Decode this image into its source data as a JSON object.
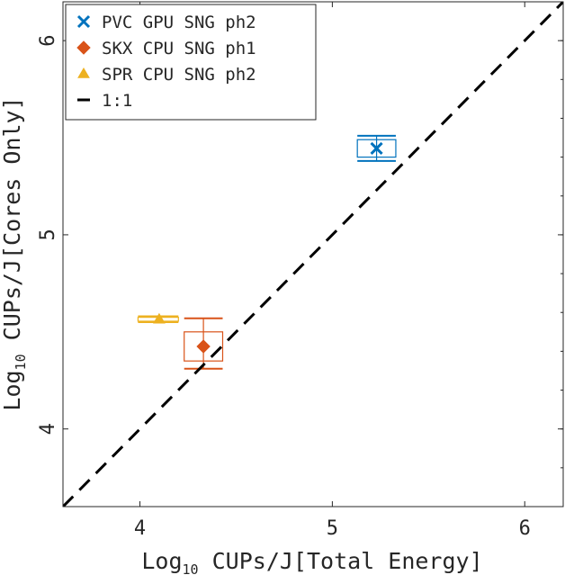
{
  "chart_data": {
    "type": "scatter",
    "title": "",
    "xlabel": {
      "prefix": "Log",
      "sub": "10",
      "suffix": " CUPs/J[Total Energy]"
    },
    "ylabel": {
      "prefix": "Log",
      "sub": "10",
      "suffix": " CUPs/J[Cores Only]"
    },
    "xlim": [
      3.6,
      6.2
    ],
    "ylim": [
      3.6,
      6.2
    ],
    "xticks": [
      {
        "value": 4,
        "label": "4"
      },
      {
        "value": 5,
        "label": "5"
      },
      {
        "value": 6,
        "label": "6"
      }
    ],
    "yticks": [
      {
        "value": 4,
        "label": "4"
      },
      {
        "value": 5,
        "label": "5"
      },
      {
        "value": 6,
        "label": "6"
      }
    ],
    "grid": false,
    "legend_position": "top-left",
    "series": [
      {
        "name": "PVC GPU SNG ph2",
        "marker": "x",
        "color": "#0072BD",
        "x": 5.23,
        "y": 5.445,
        "box": {
          "x_low": 5.13,
          "x_high": 5.33,
          "y_low": 5.4,
          "y_high": 5.49
        },
        "whisker": {
          "y_low": 5.38,
          "y_high": 5.51,
          "cap_x_low": 5.13,
          "cap_x_high": 5.33
        }
      },
      {
        "name": "SKX CPU SNG ph1",
        "marker": "diamond",
        "color": "#D95319",
        "x": 4.33,
        "y": 4.425,
        "box": {
          "x_low": 4.23,
          "x_high": 4.43,
          "y_low": 4.35,
          "y_high": 4.5
        },
        "whisker": {
          "y_low": 4.31,
          "y_high": 4.57,
          "cap_x_low": 4.23,
          "cap_x_high": 4.43
        }
      },
      {
        "name": "SPR CPU SNG ph2",
        "marker": "triangle",
        "color": "#EDB120",
        "x": 4.1,
        "y": 4.565,
        "box": {
          "x_low": 3.99,
          "x_high": 4.2,
          "y_low": 4.555,
          "y_high": 4.575
        },
        "whisker": {
          "y_low": 4.55,
          "y_high": 4.58,
          "cap_x_low": 3.99,
          "cap_x_high": 4.2
        }
      },
      {
        "name": "1:1",
        "marker": "dashed-line",
        "color": "#000000",
        "x": [
          3.6,
          6.2
        ],
        "y": [
          3.6,
          6.2
        ]
      }
    ]
  }
}
